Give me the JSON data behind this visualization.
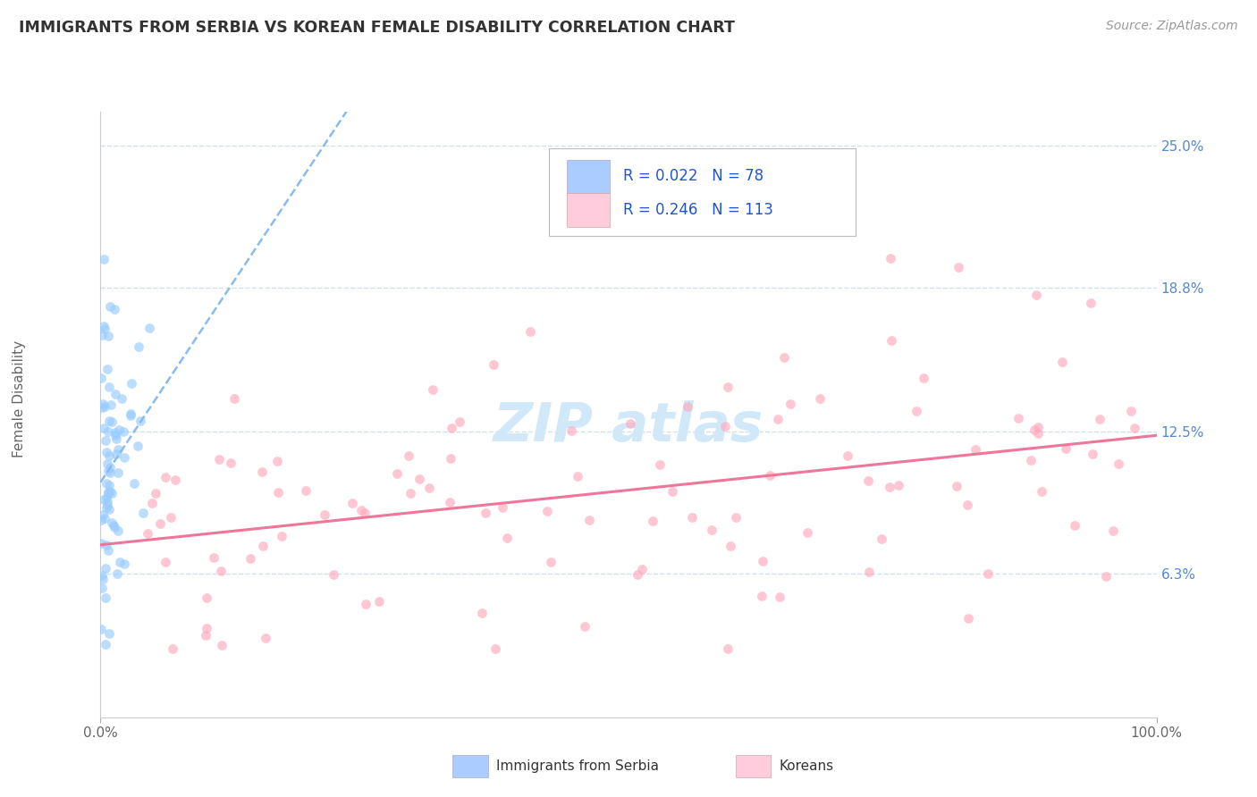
{
  "title": "IMMIGRANTS FROM SERBIA VS KOREAN FEMALE DISABILITY CORRELATION CHART",
  "source": "Source: ZipAtlas.com",
  "ylabel": "Female Disability",
  "xmin": 0.0,
  "xmax": 100.0,
  "ymin": 0.0,
  "ymax": 26.5,
  "ytick_vals": [
    6.3,
    12.5,
    18.8,
    25.0
  ],
  "ytick_labels": [
    "6.3%",
    "12.5%",
    "18.8%",
    "25.0%"
  ],
  "R1": 0.022,
  "N1": 78,
  "R2": 0.246,
  "N2": 113,
  "color_blue_line": "#88bbee",
  "color_pink_line": "#ee7799",
  "color_blue_scatter": "#99ccff",
  "color_pink_scatter": "#ffaabc",
  "color_blue_legend": "#aaccff",
  "color_pink_legend": "#ffccdd",
  "background_color": "#ffffff",
  "grid_color": "#c8e0f0",
  "watermark_color": "#d0e8f8",
  "title_color": "#333333",
  "source_color": "#999999",
  "axis_label_color": "#666666",
  "tick_color": "#5588cc",
  "legend_text_color": "#2255cc",
  "legend_R_color": "#000000"
}
